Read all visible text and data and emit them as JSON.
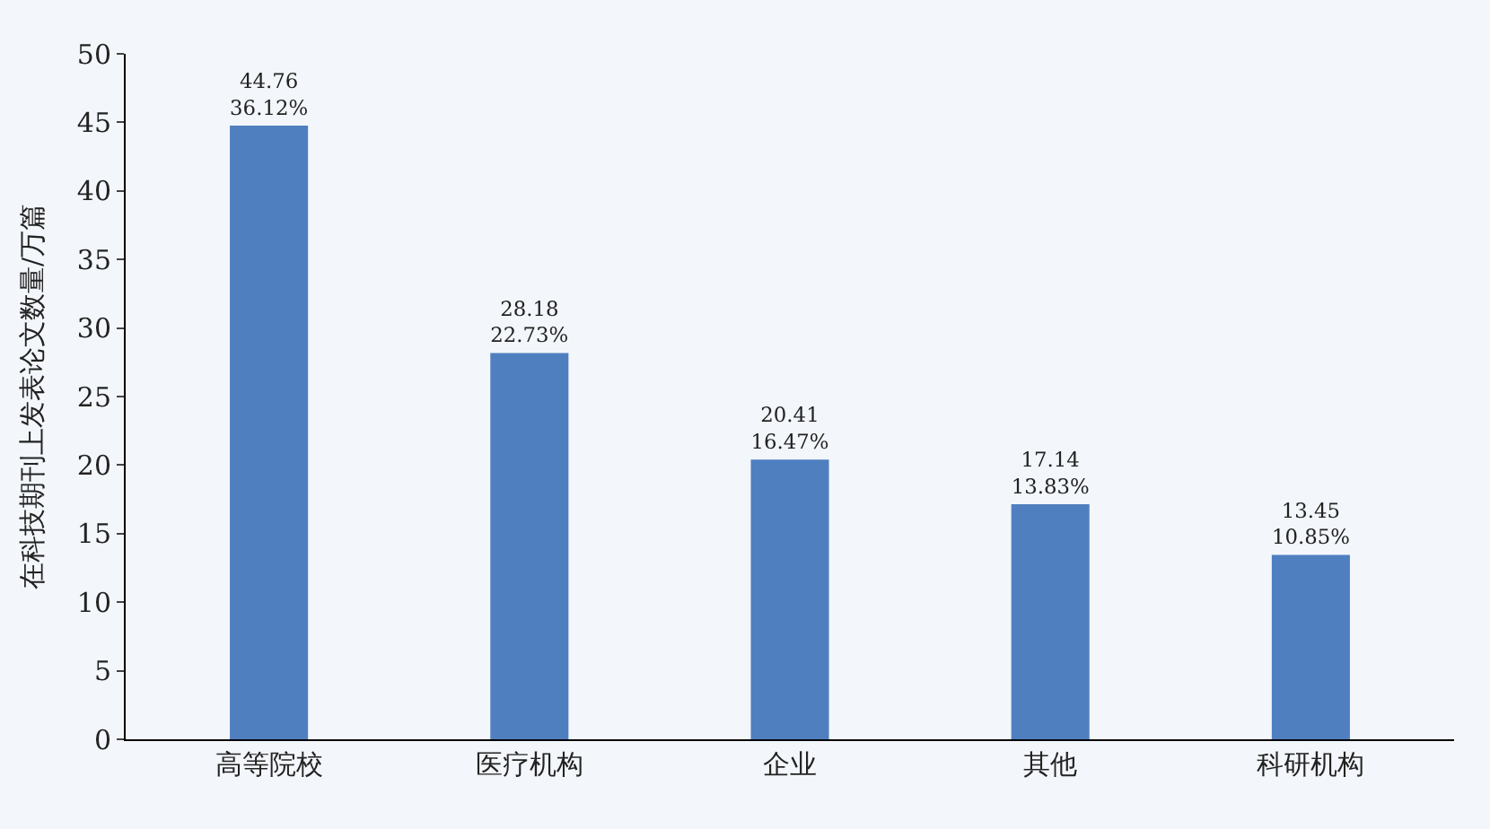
{
  "chart_data": {
    "type": "bar",
    "ylabel": "在科技期刊上发表论文数量/万篇",
    "categories": [
      "高等院校",
      "医疗机构",
      "企业",
      "其他",
      "科研机构"
    ],
    "values": [
      44.76,
      28.18,
      20.41,
      17.14,
      13.45
    ],
    "value_labels": [
      "44.76\n36.12%",
      "28.18\n22.73%",
      "20.41\n16.47%",
      "17.14\n13.83%",
      "13.45\n10.85%"
    ],
    "color": "#4f7fbf",
    "ylim": [
      0,
      50
    ],
    "yticks": [
      0,
      5,
      10,
      15,
      20,
      25,
      30,
      35,
      40,
      45,
      50
    ],
    "grid": false
  }
}
